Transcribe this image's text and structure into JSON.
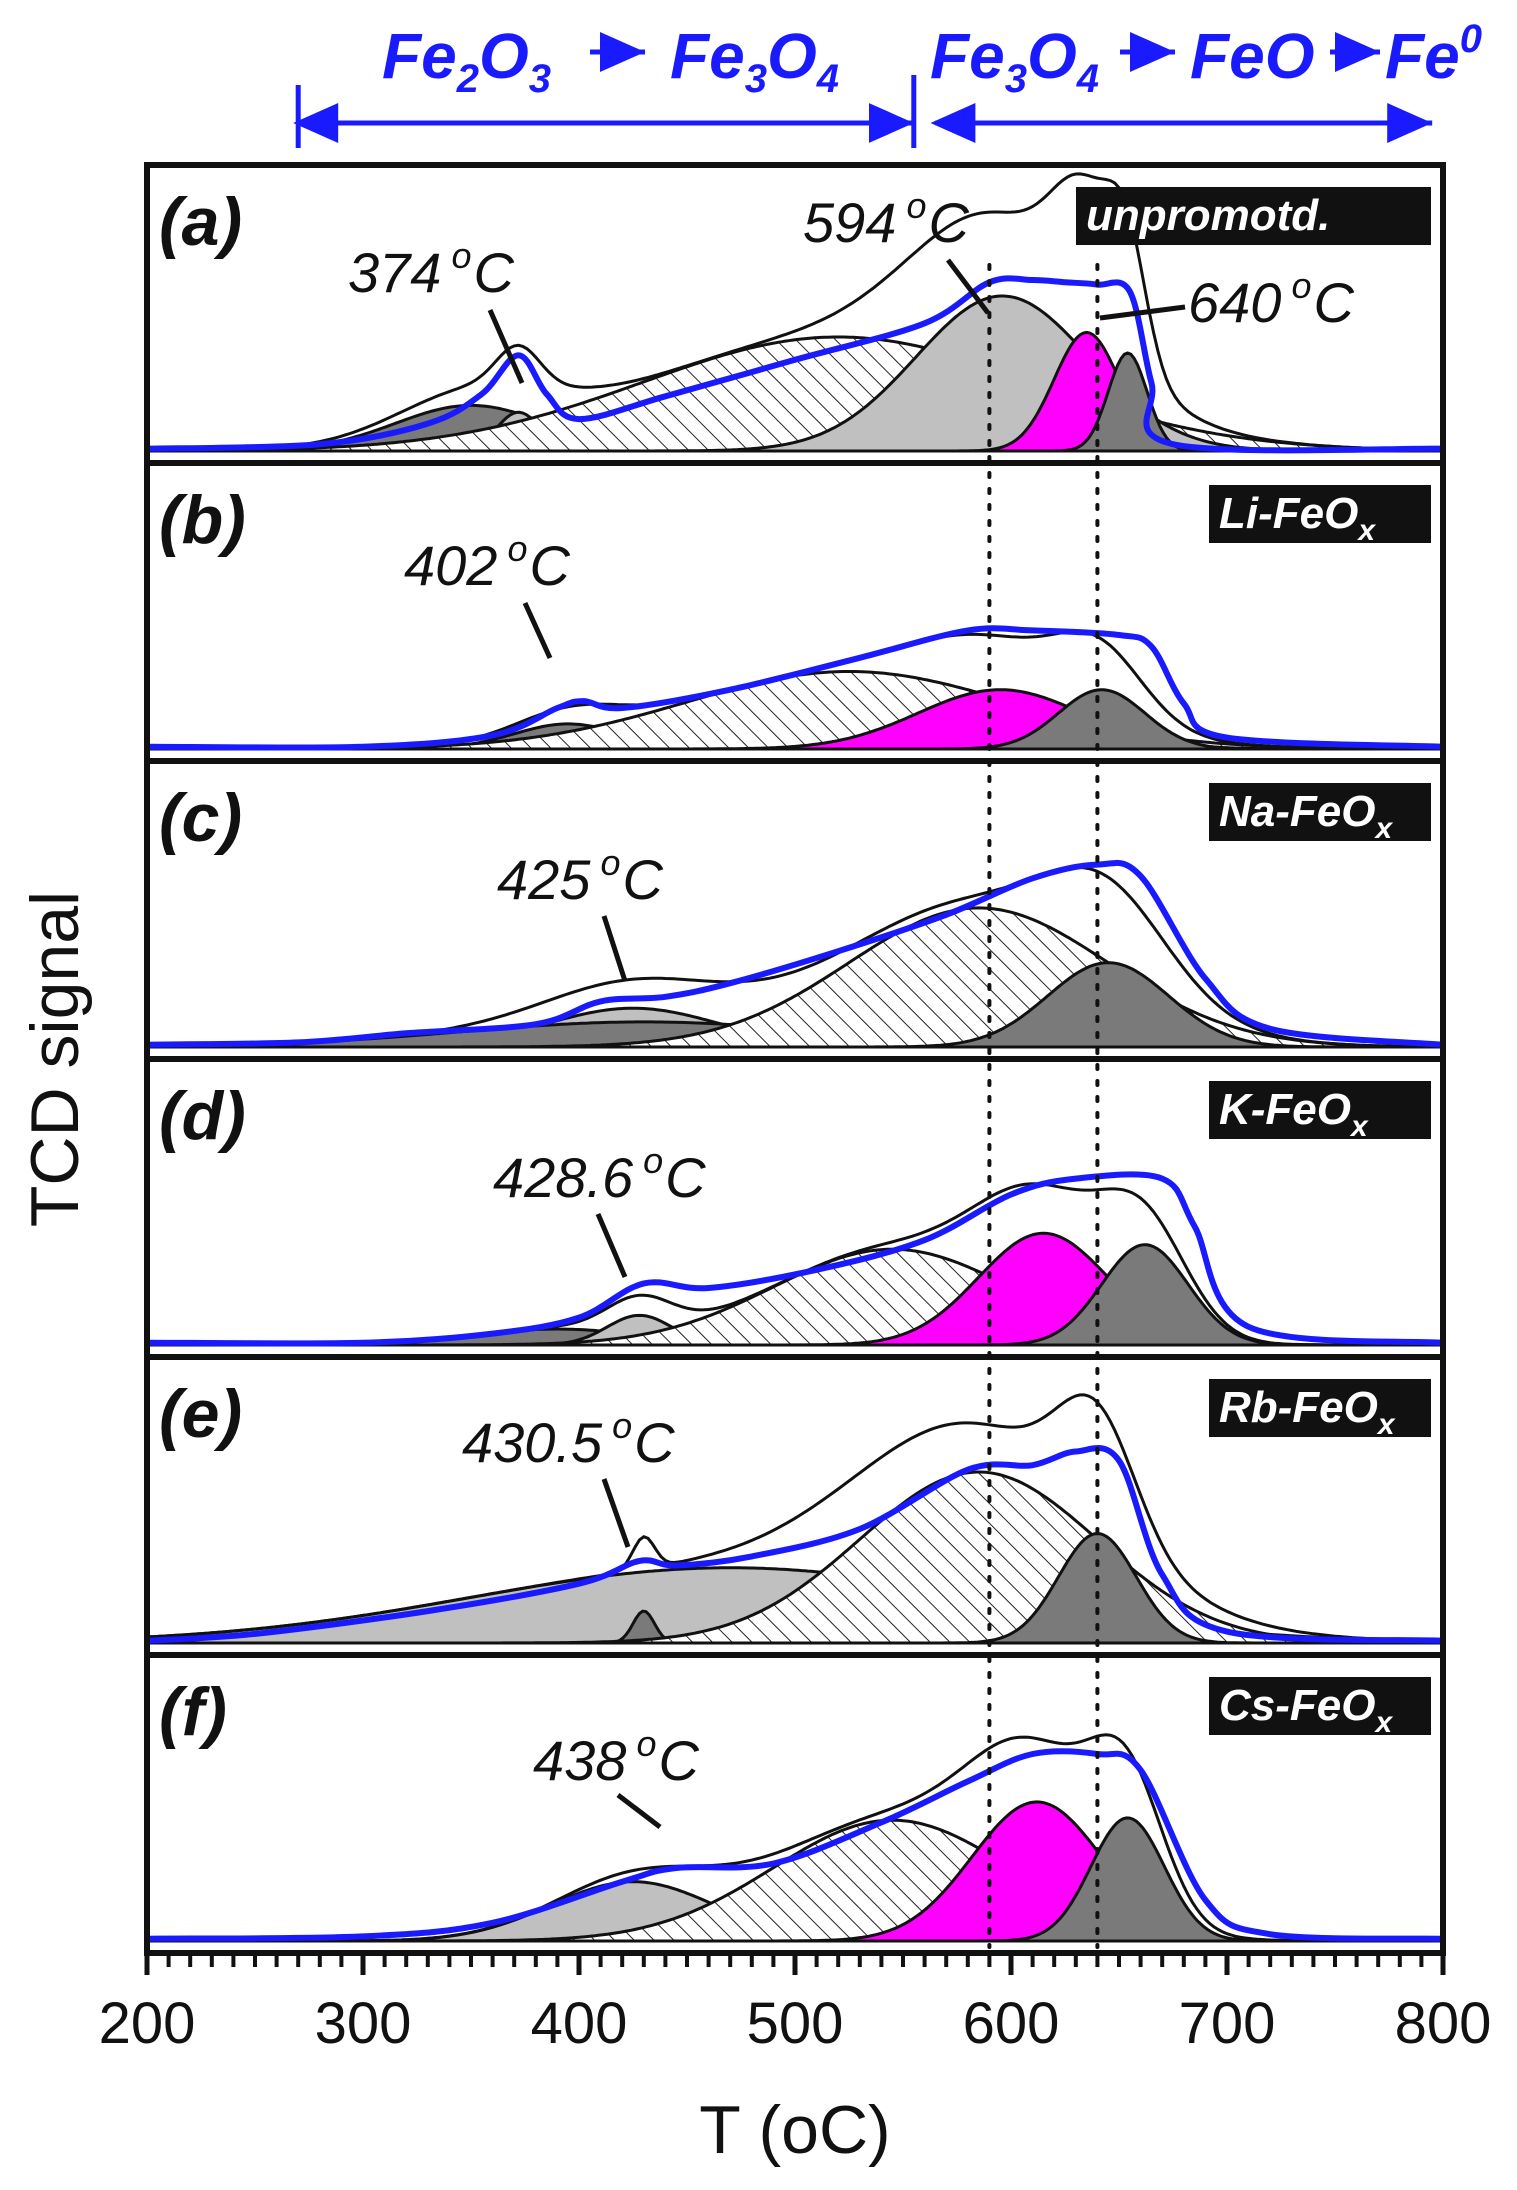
{
  "chart_data": {
    "type": "line",
    "title": "",
    "xlabel": "T (oC)",
    "ylabel": "TCD signal",
    "xlim": [
      200,
      800
    ],
    "x_ticks": [
      200,
      300,
      400,
      500,
      600,
      700,
      800
    ],
    "colors": {
      "measured": "#1a1aff",
      "fit_envelope": "#111111",
      "hatched_component": "#ffffff",
      "light_grey_component": "#c0c0c0",
      "magenta_component": "#ff00ff",
      "dark_grey_component": "#7a7a7a",
      "phase_arrows": "#1a1aff"
    },
    "reference_lines_celsius": [
      590,
      640
    ],
    "phases": [
      {
        "label": "Fe2O3 → Fe3O4",
        "from": 270,
        "to": 555
      },
      {
        "label": "Fe3O4 → FeO → Fe0",
        "from": 565,
        "to": 795
      }
    ],
    "phase_labels": [
      "Fe",
      "2",
      "O",
      "3",
      "Fe",
      "3",
      "O",
      "4",
      "Fe",
      "3",
      "O",
      "4",
      "FeO",
      "Fe",
      "0"
    ],
    "panels": [
      {
        "letter": "(a)",
        "tag": "unpromotd.",
        "peaks_annotated": [
          {
            "label": "374",
            "unit": "C",
            "deg": "o",
            "at": 374
          },
          {
            "label": "594",
            "unit": "C",
            "deg": "o",
            "at": 594
          },
          {
            "label": "640",
            "unit": "C",
            "deg": "o",
            "at": 640
          }
        ],
        "components": [
          {
            "fill": "dark",
            "center": 350,
            "width": 35,
            "height": 0.2
          },
          {
            "fill": "light",
            "center": 372,
            "width": 10,
            "height": 0.17
          },
          {
            "fill": "hatched",
            "center": 520,
            "width": 90,
            "height": 0.5
          },
          {
            "fill": "light",
            "center": 596,
            "width": 40,
            "height": 0.68
          },
          {
            "fill": "magenta",
            "center": 635,
            "width": 15,
            "height": 0.52
          },
          {
            "fill": "dark",
            "center": 654,
            "width": 9,
            "height": 0.43
          }
        ],
        "measured": [
          [
            200,
            0.01
          ],
          [
            280,
            0.03
          ],
          [
            330,
            0.12
          ],
          [
            355,
            0.25
          ],
          [
            372,
            0.42
          ],
          [
            385,
            0.25
          ],
          [
            400,
            0.14
          ],
          [
            440,
            0.24
          ],
          [
            500,
            0.4
          ],
          [
            560,
            0.56
          ],
          [
            590,
            0.74
          ],
          [
            610,
            0.75
          ],
          [
            625,
            0.74
          ],
          [
            640,
            0.73
          ],
          [
            655,
            0.7
          ],
          [
            665,
            0.3
          ],
          [
            675,
            0.03
          ],
          [
            800,
            0.01
          ]
        ]
      },
      {
        "letter": "(b)",
        "tag": "Li-FeO",
        "tag_sub": "x",
        "peaks_annotated": [
          {
            "label": "402",
            "unit": "C",
            "deg": "o",
            "at": 402
          }
        ],
        "components": [
          {
            "fill": "dark",
            "center": 395,
            "width": 25,
            "height": 0.11
          },
          {
            "fill": "hatched",
            "center": 525,
            "width": 75,
            "height": 0.34
          },
          {
            "fill": "magenta",
            "center": 595,
            "width": 38,
            "height": 0.26
          },
          {
            "fill": "dark",
            "center": 642,
            "width": 20,
            "height": 0.26
          }
        ],
        "measured": [
          [
            200,
            0.01
          ],
          [
            300,
            0.01
          ],
          [
            360,
            0.06
          ],
          [
            390,
            0.18
          ],
          [
            402,
            0.21
          ],
          [
            420,
            0.18
          ],
          [
            470,
            0.26
          ],
          [
            530,
            0.4
          ],
          [
            580,
            0.52
          ],
          [
            610,
            0.52
          ],
          [
            650,
            0.5
          ],
          [
            665,
            0.45
          ],
          [
            680,
            0.2
          ],
          [
            700,
            0.05
          ],
          [
            800,
            0.01
          ]
        ]
      },
      {
        "letter": "(c)",
        "tag": "Na-FeO",
        "tag_sub": "x",
        "peaks_annotated": [
          {
            "label": "425",
            "unit": "C",
            "deg": "o",
            "at": 425
          }
        ],
        "components": [
          {
            "fill": "light",
            "center": 425,
            "width": 40,
            "height": 0.17
          },
          {
            "fill": "dark",
            "center": 430,
            "width": 85,
            "height": 0.11
          },
          {
            "fill": "hatched",
            "center": 585,
            "width": 60,
            "height": 0.61
          },
          {
            "fill": "dark",
            "center": 645,
            "width": 28,
            "height": 0.37
          }
        ],
        "measured": [
          [
            200,
            0.01
          ],
          [
            270,
            0.02
          ],
          [
            320,
            0.06
          ],
          [
            380,
            0.1
          ],
          [
            410,
            0.2
          ],
          [
            440,
            0.22
          ],
          [
            470,
            0.28
          ],
          [
            520,
            0.42
          ],
          [
            570,
            0.58
          ],
          [
            610,
            0.74
          ],
          [
            640,
            0.8
          ],
          [
            660,
            0.75
          ],
          [
            690,
            0.3
          ],
          [
            720,
            0.08
          ],
          [
            800,
            0.01
          ]
        ]
      },
      {
        "letter": "(d)",
        "tag": "K-FeO",
        "tag_sub": "x",
        "peaks_annotated": [
          {
            "label": "428.6",
            "unit": "C",
            "deg": "o",
            "at": 428.6
          }
        ],
        "components": [
          {
            "fill": "dark",
            "center": 390,
            "width": 40,
            "height": 0.07
          },
          {
            "fill": "light",
            "center": 428,
            "width": 15,
            "height": 0.13
          },
          {
            "fill": "hatched",
            "center": 545,
            "width": 55,
            "height": 0.42
          },
          {
            "fill": "magenta",
            "center": 615,
            "width": 30,
            "height": 0.49
          },
          {
            "fill": "dark",
            "center": 662,
            "width": 20,
            "height": 0.44
          }
        ],
        "measured": [
          [
            200,
            0.01
          ],
          [
            300,
            0.01
          ],
          [
            360,
            0.05
          ],
          [
            400,
            0.12
          ],
          [
            430,
            0.27
          ],
          [
            460,
            0.25
          ],
          [
            510,
            0.33
          ],
          [
            560,
            0.46
          ],
          [
            600,
            0.66
          ],
          [
            630,
            0.73
          ],
          [
            670,
            0.73
          ],
          [
            685,
            0.52
          ],
          [
            710,
            0.08
          ],
          [
            800,
            0.01
          ]
        ]
      },
      {
        "letter": "(e)",
        "tag": "Rb-FeO",
        "tag_sub": "x",
        "peaks_annotated": [
          {
            "label": "430.5",
            "unit": "C",
            "deg": "o",
            "at": 430.5
          }
        ],
        "components": [
          {
            "fill": "light",
            "center": 470,
            "width": 120,
            "height": 0.33
          },
          {
            "fill": "dark",
            "center": 430,
            "width": 5,
            "height": 0.14
          },
          {
            "fill": "hatched",
            "center": 585,
            "width": 55,
            "height": 0.75
          },
          {
            "fill": "dark",
            "center": 640,
            "width": 18,
            "height": 0.48
          }
        ],
        "measured": [
          [
            200,
            0.01
          ],
          [
            250,
            0.04
          ],
          [
            330,
            0.14
          ],
          [
            400,
            0.26
          ],
          [
            428,
            0.36
          ],
          [
            445,
            0.34
          ],
          [
            480,
            0.38
          ],
          [
            530,
            0.5
          ],
          [
            580,
            0.76
          ],
          [
            610,
            0.78
          ],
          [
            630,
            0.84
          ],
          [
            650,
            0.8
          ],
          [
            670,
            0.3
          ],
          [
            700,
            0.05
          ],
          [
            800,
            0.01
          ]
        ]
      },
      {
        "letter": "(f)",
        "tag": "Cs-FeO",
        "tag_sub": "x",
        "peaks_annotated": [
          {
            "label": "438",
            "unit": "C",
            "deg": "o",
            "at": 438
          }
        ],
        "components": [
          {
            "fill": "light",
            "center": 425,
            "width": 38,
            "height": 0.26
          },
          {
            "fill": "hatched",
            "center": 545,
            "width": 55,
            "height": 0.53
          },
          {
            "fill": "magenta",
            "center": 612,
            "width": 30,
            "height": 0.61
          },
          {
            "fill": "dark",
            "center": 654,
            "width": 17,
            "height": 0.54
          }
        ],
        "measured": [
          [
            200,
            0.01
          ],
          [
            300,
            0.02
          ],
          [
            360,
            0.08
          ],
          [
            420,
            0.26
          ],
          [
            445,
            0.32
          ],
          [
            490,
            0.34
          ],
          [
            540,
            0.52
          ],
          [
            580,
            0.7
          ],
          [
            610,
            0.82
          ],
          [
            640,
            0.82
          ],
          [
            660,
            0.75
          ],
          [
            690,
            0.18
          ],
          [
            720,
            0.03
          ],
          [
            800,
            0.01
          ]
        ]
      }
    ]
  }
}
